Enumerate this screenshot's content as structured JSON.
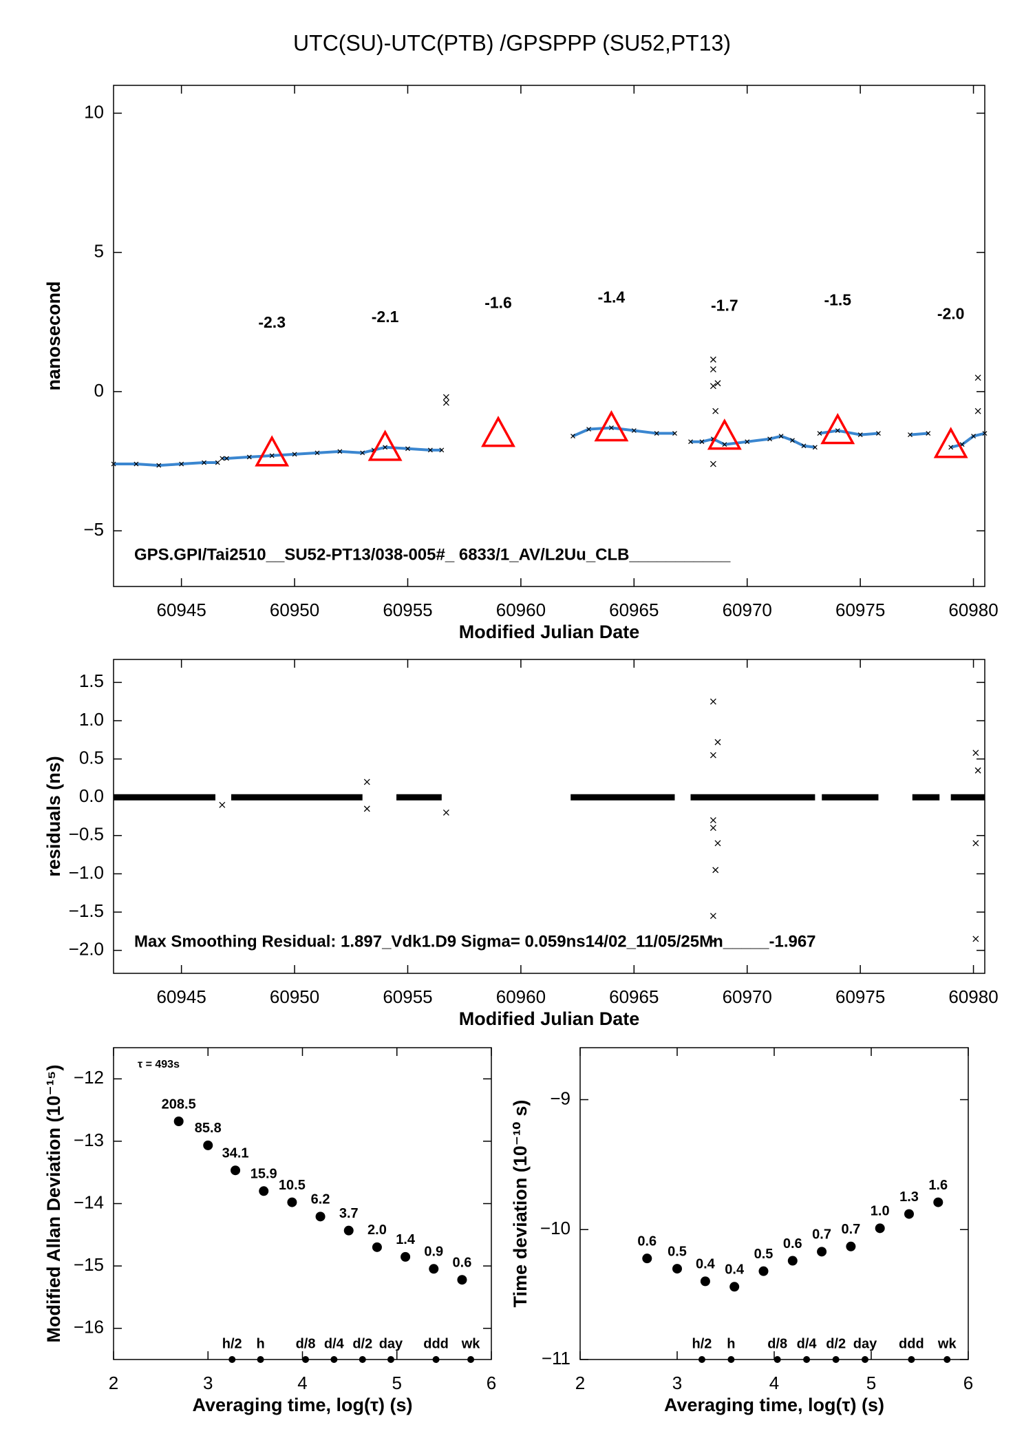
{
  "chart_data": [
    {
      "type": "line",
      "title": "UTC(SU)-UTC(PTB)  /GPSPPP  (SU52,PT13)",
      "xlabel": "Modified Julian Date",
      "ylabel": "nanosecond",
      "annotation": "GPS.GPI/Tai2510__SU52-PT13/038-005#_  6833/1_AV/L2Uu_CLB___________",
      "xlim": [
        60942,
        60980.5
      ],
      "xticks": [
        60945,
        60950,
        60955,
        60960,
        60965,
        60970,
        60975,
        60980
      ],
      "ylim": [
        -7,
        11
      ],
      "yticks": [
        {
          "value": -5,
          "label": "−5"
        },
        0,
        5,
        10
      ],
      "series": [
        {
          "mode": "line",
          "color": "#3a86d0",
          "marker_color": "#000000",
          "x": [
            60942,
            60943,
            60944,
            60945,
            60946,
            60946.6,
            null,
            60946.8,
            60947,
            60948,
            60949,
            60950,
            60951,
            60952,
            60953,
            60953.5,
            60954,
            60955,
            60956,
            60956.5,
            null,
            60962.3,
            60963,
            60964,
            60965,
            60966,
            60966.8,
            null,
            60967.5,
            60968,
            60968.5,
            60969,
            60970,
            60971,
            60971.5,
            60972,
            60972.5,
            60973,
            null,
            60973.2,
            60974,
            60975,
            60975.8,
            null,
            60977.2,
            60978,
            null,
            60979,
            60979.5,
            60980,
            60980.5
          ],
          "values": [
            -2.6,
            -2.6,
            -2.65,
            -2.6,
            -2.55,
            -2.55,
            null,
            -2.4,
            -2.4,
            -2.35,
            -2.3,
            -2.25,
            -2.2,
            -2.15,
            -2.2,
            -2.1,
            -2.0,
            -2.05,
            -2.1,
            -2.1,
            null,
            -1.6,
            -1.35,
            -1.3,
            -1.4,
            -1.5,
            -1.5,
            null,
            -1.8,
            -1.8,
            -1.7,
            -1.9,
            -1.8,
            -1.7,
            -1.6,
            -1.75,
            -1.95,
            -2.0,
            null,
            -1.5,
            -1.4,
            -1.55,
            -1.5,
            null,
            -1.55,
            -1.5,
            null,
            -2.0,
            -1.9,
            -1.6,
            -1.5
          ]
        },
        {
          "mode": "markers",
          "color": "#000000",
          "x": [
            60956.7,
            60956.7,
            60968.5,
            60968.5,
            60968.5,
            60968.6,
            60968.7,
            60968.5,
            60980.2,
            60980.2
          ],
          "values": [
            -0.2,
            -0.4,
            1.15,
            0.8,
            0.2,
            -0.7,
            0.3,
            -2.6,
            0.5,
            -0.7
          ]
        }
      ],
      "triangles": {
        "color": "#ff0000",
        "x": [
          60949,
          60954,
          60959,
          60964,
          60969,
          60974,
          60979
        ],
        "values": [
          -2.3,
          -2.1,
          -1.6,
          -1.4,
          -1.7,
          -1.5,
          -2.0
        ],
        "value_labels": [
          "-2.3",
          "-2.1",
          "-1.6",
          "-1.4",
          "-1.7",
          "-1.5",
          "-2.0"
        ]
      }
    },
    {
      "type": "line",
      "xlabel": "Modified Julian Date",
      "ylabel": "residuals (ns)",
      "annotation": "Max Smoothing Residual: 1.897_Vdk1.D9  Sigma= 0.059ns14/02_11/05/25Mn_____-1.967",
      "xlim": [
        60942,
        60980.5
      ],
      "xticks": [
        60945,
        60950,
        60955,
        60960,
        60965,
        60970,
        60975,
        60980
      ],
      "ylim": [
        -2.3,
        1.8
      ],
      "yticks": [
        {
          "value": -2.0,
          "label": "−2.0"
        },
        {
          "value": -1.5,
          "label": "−1.5"
        },
        {
          "value": -1.0,
          "label": "−1.0"
        },
        {
          "value": -0.5,
          "label": "−0.5"
        },
        {
          "value": 0,
          "label": "0.0"
        },
        {
          "value": 0.5,
          "label": "0.5"
        },
        {
          "value": 1.0,
          "label": "1.0"
        },
        {
          "value": 1.5,
          "label": "1.5"
        }
      ],
      "series": [
        {
          "mode": "band",
          "color": "#000000",
          "x": [
            60942,
            60946.5,
            null,
            60947.2,
            60953,
            null,
            60954.5,
            60956.5,
            null,
            60962.2,
            60966.8,
            null,
            60967.5,
            60973,
            null,
            60973.3,
            60975.8,
            null,
            60977.3,
            60978.5,
            null,
            60979,
            60980.5
          ],
          "values": [
            0,
            0,
            null,
            0,
            0,
            null,
            0,
            0,
            null,
            0,
            0,
            null,
            0,
            0,
            null,
            0,
            0,
            null,
            0,
            0,
            null,
            0,
            0
          ]
        },
        {
          "mode": "markers",
          "color": "#000000",
          "x": [
            60946.8,
            60953.2,
            60953.2,
            60956.7,
            60968.5,
            60968.5,
            60968.5,
            60968.5,
            60968.5,
            60968.7,
            60968.7,
            60968.6,
            60968.5,
            60980.1,
            60980.1,
            60980.1,
            60980.2
          ],
          "values": [
            -0.1,
            0.2,
            -0.15,
            -0.2,
            1.25,
            0.55,
            -0.3,
            -1.55,
            -1.88,
            0.72,
            -0.6,
            -0.95,
            -0.4,
            0.58,
            -0.6,
            -1.85,
            0.35
          ]
        }
      ]
    },
    {
      "type": "scatter",
      "xlabel": "Averaging time, log(τ) (s)",
      "ylabel": "Modified Allan Deviation (10⁻¹⁵)",
      "annotation": "τ = 493s",
      "xlim": [
        2,
        6
      ],
      "xticks": [
        2,
        3,
        4,
        5,
        6
      ],
      "ylim": [
        -16.5,
        -11.5
      ],
      "yticks": [
        {
          "value": -16,
          "label": "−16"
        },
        {
          "value": -15,
          "label": "−15"
        },
        {
          "value": -14,
          "label": "−14"
        },
        {
          "value": -13,
          "label": "−13"
        },
        {
          "value": -12,
          "label": "−12"
        }
      ],
      "x": [
        2.69,
        3.0,
        3.29,
        3.59,
        3.89,
        4.19,
        4.49,
        4.79,
        5.09,
        5.39,
        5.69
      ],
      "values": [
        -12.681,
        -13.066,
        -13.467,
        -13.799,
        -13.979,
        -14.208,
        -14.432,
        -14.699,
        -14.854,
        -15.046,
        -15.222
      ],
      "value_labels": [
        "208.5",
        "85.8",
        "34.1",
        "15.9",
        "10.5",
        "6.2",
        "3.7",
        "2.0",
        "1.4",
        "0.9",
        "0.6"
      ],
      "label_color": "#ff0000",
      "reference_marks": {
        "x": [
          3.255,
          3.556,
          4.033,
          4.334,
          4.636,
          4.936,
          5.414,
          5.782
        ],
        "labels": [
          "h/2",
          "h",
          "d/8",
          "d/4",
          "d/2",
          "day",
          "ddd",
          "wk"
        ]
      }
    },
    {
      "type": "scatter",
      "xlabel": "Averaging time, log(τ) (s)",
      "ylabel": "Time deviation (10⁻¹⁰ s)",
      "xlim": [
        2,
        6
      ],
      "xticks": [
        2,
        3,
        4,
        5,
        6
      ],
      "ylim": [
        -11,
        -8.6
      ],
      "yticks": [
        {
          "value": -11,
          "label": "−11"
        },
        {
          "value": -10,
          "label": "−10"
        },
        {
          "value": -9,
          "label": "−9"
        }
      ],
      "x": [
        2.69,
        3.0,
        3.29,
        3.59,
        3.89,
        4.19,
        4.49,
        4.79,
        5.09,
        5.39,
        5.69
      ],
      "values": [
        -10.222,
        -10.301,
        -10.398,
        -10.44,
        -10.32,
        -10.24,
        -10.17,
        -10.13,
        -9.99,
        -9.88,
        -9.79
      ],
      "value_labels": [
        "0.6",
        "0.5",
        "0.4",
        "0.4",
        "0.5",
        "0.6",
        "0.7",
        "0.7",
        "1.0",
        "1.3",
        "1.6"
      ],
      "label_color": "#ff0000",
      "reference_marks": {
        "x": [
          3.255,
          3.556,
          4.033,
          4.334,
          4.636,
          4.936,
          5.414,
          5.782
        ],
        "labels": [
          "h/2",
          "h",
          "d/8",
          "d/4",
          "d/2",
          "day",
          "ddd",
          "wk"
        ]
      }
    }
  ]
}
